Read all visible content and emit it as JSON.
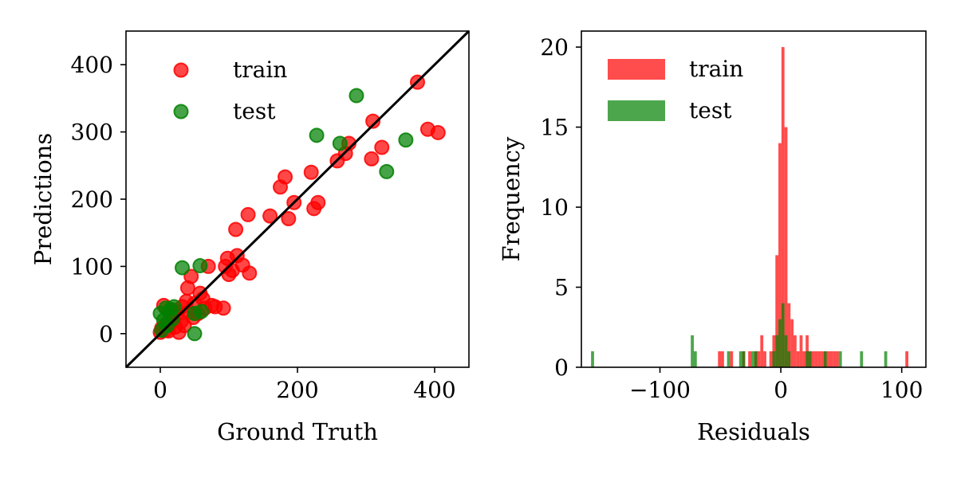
{
  "chart_data": [
    {
      "type": "scatter",
      "xlabel": "Ground Truth",
      "ylabel": "Predictions",
      "xlim": [
        -50,
        450
      ],
      "ylim": [
        -50,
        450
      ],
      "xticks": [
        0,
        200,
        400
      ],
      "yticks": [
        0,
        100,
        200,
        300,
        400
      ],
      "grid": false,
      "legend": "top-left",
      "reference_line": {
        "from": [
          -50,
          -50
        ],
        "to": [
          450,
          450
        ],
        "color": "#000000"
      },
      "series": [
        {
          "name": "train",
          "color": "#ff0000",
          "points": [
            [
              0,
              2
            ],
            [
              2,
              8
            ],
            [
              5,
              42
            ],
            [
              8,
              5
            ],
            [
              10,
              15
            ],
            [
              12,
              4
            ],
            [
              15,
              28
            ],
            [
              18,
              20
            ],
            [
              20,
              35
            ],
            [
              22,
              10
            ],
            [
              25,
              30
            ],
            [
              27,
              2
            ],
            [
              30,
              18
            ],
            [
              32,
              40
            ],
            [
              35,
              12
            ],
            [
              38,
              48
            ],
            [
              40,
              68
            ],
            [
              42,
              32
            ],
            [
              45,
              85
            ],
            [
              48,
              24
            ],
            [
              50,
              45
            ],
            [
              55,
              30
            ],
            [
              58,
              60
            ],
            [
              62,
              52
            ],
            [
              65,
              38
            ],
            [
              70,
              100
            ],
            [
              75,
              42
            ],
            [
              80,
              40
            ],
            [
              92,
              38
            ],
            [
              95,
              100
            ],
            [
              98,
              112
            ],
            [
              100,
              88
            ],
            [
              105,
              94
            ],
            [
              110,
              155
            ],
            [
              112,
              116
            ],
            [
              120,
              102
            ],
            [
              128,
              177
            ],
            [
              130,
              90
            ],
            [
              160,
              175
            ],
            [
              175,
              218
            ],
            [
              182,
              233
            ],
            [
              187,
              171
            ],
            [
              195,
              195
            ],
            [
              220,
              240
            ],
            [
              224,
              186
            ],
            [
              230,
              195
            ],
            [
              258,
              257
            ],
            [
              270,
              268
            ],
            [
              275,
              283
            ],
            [
              308,
              260
            ],
            [
              310,
              316
            ],
            [
              323,
              277
            ],
            [
              375,
              374
            ],
            [
              390,
              304
            ],
            [
              405,
              299
            ]
          ]
        },
        {
          "name": "test",
          "color": "#008000",
          "points": [
            [
              0,
              30
            ],
            [
              2,
              5
            ],
            [
              5,
              20
            ],
            [
              8,
              38
            ],
            [
              10,
              12
            ],
            [
              15,
              36
            ],
            [
              18,
              22
            ],
            [
              20,
              40
            ],
            [
              32,
              98
            ],
            [
              50,
              0
            ],
            [
              50,
              30
            ],
            [
              58,
              101
            ],
            [
              60,
              33
            ],
            [
              228,
              295
            ],
            [
              262,
              283
            ],
            [
              286,
              354
            ],
            [
              330,
              241
            ],
            [
              358,
              288
            ]
          ]
        }
      ]
    },
    {
      "type": "bar",
      "subtype": "histogram",
      "xlabel": "Residuals",
      "ylabel": "Frequency",
      "xlim": [
        -165,
        120
      ],
      "ylim": [
        0,
        21
      ],
      "xticks": [
        -100,
        0,
        100
      ],
      "xtick_labels": [
        "−100",
        "0",
        "100"
      ],
      "yticks": [
        0,
        5,
        10,
        15,
        20
      ],
      "grid": false,
      "legend": "top-left",
      "bin_width": 2.5,
      "series": [
        {
          "name": "train",
          "color": "#ff0000",
          "bins": [
            [
              -52,
              1
            ],
            [
              -49.5,
              1
            ],
            [
              -42,
              1
            ],
            [
              -32,
              1
            ],
            [
              -27,
              1
            ],
            [
              -22,
              1
            ],
            [
              -19.5,
              1
            ],
            [
              -17,
              2
            ],
            [
              -14.5,
              1
            ],
            [
              -9.5,
              1
            ],
            [
              -7,
              2
            ],
            [
              -4.5,
              7
            ],
            [
              -2,
              14
            ],
            [
              0.5,
              20
            ],
            [
              3,
              15
            ],
            [
              5.5,
              4
            ],
            [
              8,
              3
            ],
            [
              10.5,
              2
            ],
            [
              13,
              1
            ],
            [
              15.5,
              2
            ],
            [
              18,
              1
            ],
            [
              20.5,
              2
            ],
            [
              23,
              1
            ],
            [
              25.5,
              1
            ],
            [
              28,
              1
            ],
            [
              30.5,
              1
            ],
            [
              33,
              1
            ],
            [
              35.5,
              1
            ],
            [
              38,
              1
            ],
            [
              40.5,
              1
            ],
            [
              43,
              1
            ],
            [
              45.5,
              1
            ],
            [
              103,
              1
            ]
          ]
        },
        {
          "name": "test",
          "color": "#008000",
          "bins": [
            [
              -157,
              1
            ],
            [
              -74.5,
              2
            ],
            [
              -72,
              1
            ],
            [
              -44.5,
              1
            ],
            [
              -34.5,
              1
            ],
            [
              -32,
              1
            ],
            [
              -24.5,
              1
            ],
            [
              -22,
              1
            ],
            [
              -7,
              1
            ],
            [
              -4.5,
              2
            ],
            [
              -2,
              3
            ],
            [
              0.5,
              4
            ],
            [
              3,
              2
            ],
            [
              5.5,
              1
            ],
            [
              20.5,
              1
            ],
            [
              23,
              1
            ],
            [
              35.5,
              1
            ],
            [
              48,
              1
            ],
            [
              65.5,
              1
            ],
            [
              85.5,
              1
            ]
          ]
        }
      ]
    }
  ]
}
